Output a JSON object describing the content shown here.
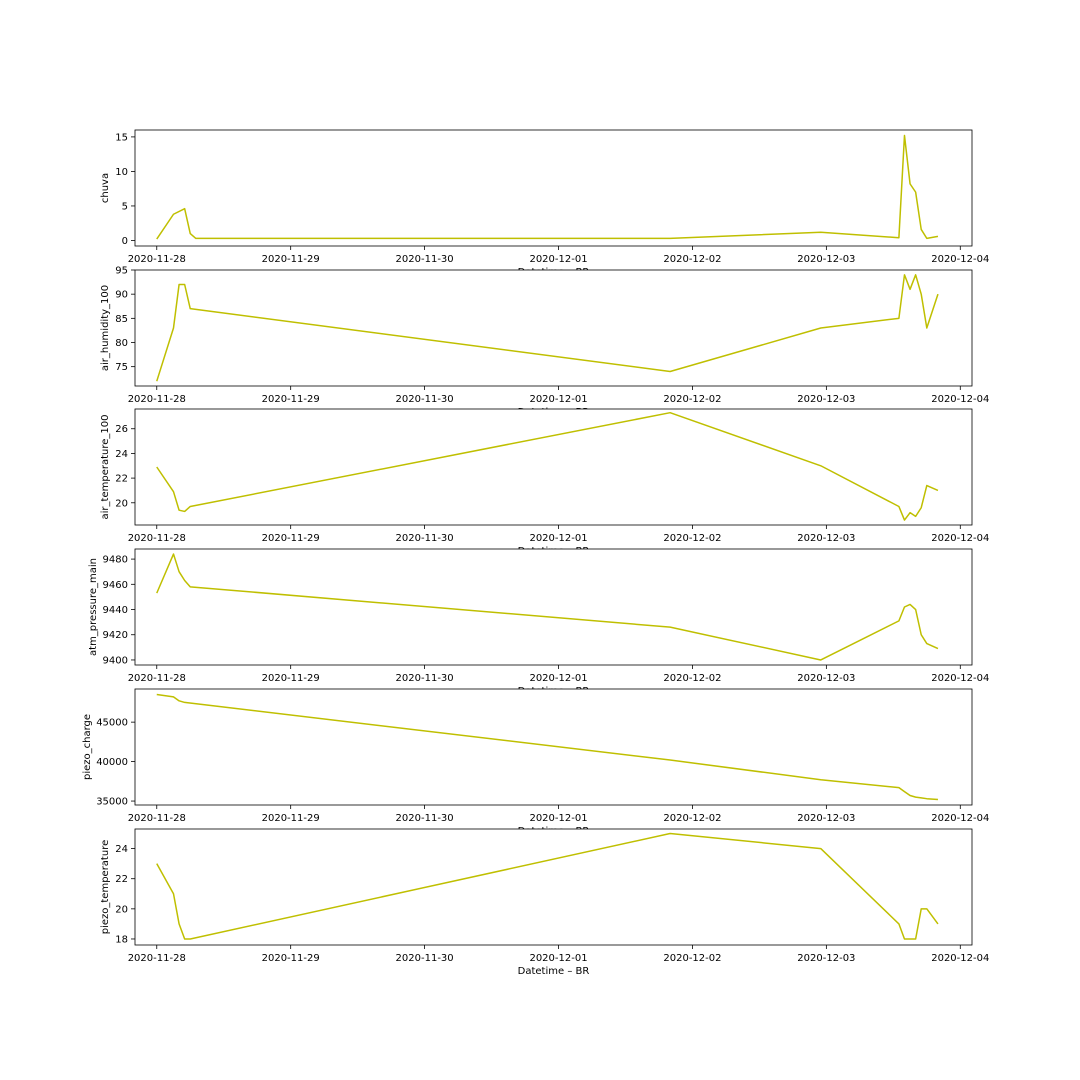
{
  "figure": {
    "background": "#ffffff",
    "line_color": "#bfbf00"
  },
  "chart_data": [
    {
      "type": "line",
      "title": "",
      "xlabel": "Datetime – BR",
      "ylabel": "chuva",
      "x_range": [
        "2020-11-27T20:06",
        "2020-12-04T02:06"
      ],
      "xticks": [
        "2020-11-28",
        "2020-11-29",
        "2020-11-30",
        "2020-12-01",
        "2020-12-02",
        "2020-12-03",
        "2020-12-04"
      ],
      "ylim": [
        -0.8,
        16
      ],
      "yticks": [
        0,
        5,
        10,
        15
      ],
      "grid": false,
      "x": [
        "2020-11-28T00:00",
        "2020-11-28T03:00",
        "2020-11-28T05:00",
        "2020-11-28T06:00",
        "2020-11-28T07:00",
        "2020-11-28T08:00",
        "2020-12-01T20:00",
        "2020-12-02T23:00",
        "2020-12-03T13:00",
        "2020-12-03T14:00",
        "2020-12-03T15:00",
        "2020-12-03T16:00",
        "2020-12-03T17:00",
        "2020-12-03T18:00",
        "2020-12-03T20:00"
      ],
      "series": [
        {
          "values": [
            0.2,
            3.8,
            4.6,
            1.0,
            0.3,
            0.3,
            0.3,
            1.2,
            0.4,
            15.2,
            8.2,
            7.0,
            1.6,
            0.3,
            0.6
          ]
        }
      ]
    },
    {
      "type": "line",
      "title": "",
      "xlabel": "Datetime – BR",
      "ylabel": "air_humidity_100",
      "x_range": [
        "2020-11-27T20:06",
        "2020-12-04T02:06"
      ],
      "xticks": [
        "2020-11-28",
        "2020-11-29",
        "2020-11-30",
        "2020-12-01",
        "2020-12-02",
        "2020-12-03",
        "2020-12-04"
      ],
      "ylim": [
        71,
        95
      ],
      "yticks": [
        75,
        80,
        85,
        90,
        95
      ],
      "grid": false,
      "x": [
        "2020-11-28T00:00",
        "2020-11-28T03:00",
        "2020-11-28T04:00",
        "2020-11-28T05:00",
        "2020-11-28T06:00",
        "2020-12-01T20:00",
        "2020-12-02T23:00",
        "2020-12-03T13:00",
        "2020-12-03T14:00",
        "2020-12-03T15:00",
        "2020-12-03T16:00",
        "2020-12-03T17:00",
        "2020-12-03T18:00",
        "2020-12-03T20:00"
      ],
      "series": [
        {
          "values": [
            72,
            83,
            92,
            92,
            87,
            74,
            83,
            85,
            94,
            91,
            94,
            90,
            83,
            90
          ]
        }
      ]
    },
    {
      "type": "line",
      "title": "",
      "xlabel": "Datetime – BR",
      "ylabel": "air_temperature_100",
      "x_range": [
        "2020-11-27T20:06",
        "2020-12-04T02:06"
      ],
      "xticks": [
        "2020-11-28",
        "2020-11-29",
        "2020-11-30",
        "2020-12-01",
        "2020-12-02",
        "2020-12-03",
        "2020-12-04"
      ],
      "ylim": [
        18.2,
        27.6
      ],
      "yticks": [
        20,
        22,
        24,
        26
      ],
      "grid": false,
      "x": [
        "2020-11-28T00:00",
        "2020-11-28T03:00",
        "2020-11-28T04:00",
        "2020-11-28T05:00",
        "2020-11-28T06:00",
        "2020-12-01T20:00",
        "2020-12-02T23:00",
        "2020-12-03T13:00",
        "2020-12-03T14:00",
        "2020-12-03T15:00",
        "2020-12-03T16:00",
        "2020-12-03T17:00",
        "2020-12-03T18:00",
        "2020-12-03T20:00"
      ],
      "series": [
        {
          "values": [
            22.9,
            20.9,
            19.4,
            19.3,
            19.7,
            27.3,
            23.0,
            19.7,
            18.6,
            19.2,
            18.9,
            19.6,
            21.4,
            21.0
          ]
        }
      ]
    },
    {
      "type": "line",
      "title": "",
      "xlabel": "Datetime – BR",
      "ylabel": "atm_pressure_main",
      "x_range": [
        "2020-11-27T20:06",
        "2020-12-04T02:06"
      ],
      "xticks": [
        "2020-11-28",
        "2020-11-29",
        "2020-11-30",
        "2020-12-01",
        "2020-12-02",
        "2020-12-03",
        "2020-12-04"
      ],
      "ylim": [
        9396,
        9488
      ],
      "yticks": [
        9400,
        9420,
        9440,
        9460,
        9480
      ],
      "grid": false,
      "x": [
        "2020-11-28T00:00",
        "2020-11-28T03:00",
        "2020-11-28T04:00",
        "2020-11-28T05:00",
        "2020-11-28T06:00",
        "2020-12-01T20:00",
        "2020-12-02T23:00",
        "2020-12-03T13:00",
        "2020-12-03T14:00",
        "2020-12-03T15:00",
        "2020-12-03T16:00",
        "2020-12-03T17:00",
        "2020-12-03T18:00",
        "2020-12-03T20:00"
      ],
      "series": [
        {
          "values": [
            9453,
            9484,
            9470,
            9463,
            9458,
            9426,
            9400,
            9431,
            9442,
            9444,
            9440,
            9420,
            9413,
            9409
          ]
        }
      ]
    },
    {
      "type": "line",
      "title": "",
      "xlabel": "Datetime – BR",
      "ylabel": "piezo_charge",
      "x_range": [
        "2020-11-27T20:06",
        "2020-12-04T02:06"
      ],
      "xticks": [
        "2020-11-28",
        "2020-11-29",
        "2020-11-30",
        "2020-12-01",
        "2020-12-02",
        "2020-12-03",
        "2020-12-04"
      ],
      "ylim": [
        34500,
        49200
      ],
      "yticks": [
        35000,
        40000,
        45000
      ],
      "grid": false,
      "x": [
        "2020-11-28T00:00",
        "2020-11-28T03:00",
        "2020-11-28T04:00",
        "2020-11-28T05:00",
        "2020-12-01T20:00",
        "2020-12-02T23:00",
        "2020-12-03T13:00",
        "2020-12-03T14:00",
        "2020-12-03T15:00",
        "2020-12-03T16:00",
        "2020-12-03T17:00",
        "2020-12-03T18:00",
        "2020-12-03T20:00"
      ],
      "series": [
        {
          "values": [
            48500,
            48200,
            47700,
            47500,
            40200,
            37700,
            36700,
            36200,
            35700,
            35500,
            35400,
            35300,
            35200
          ]
        }
      ]
    },
    {
      "type": "line",
      "title": "",
      "xlabel": "Datetime – BR",
      "ylabel": "piezo_temperature",
      "x_range": [
        "2020-11-27T20:06",
        "2020-12-04T02:06"
      ],
      "xticks": [
        "2020-11-28",
        "2020-11-29",
        "2020-11-30",
        "2020-12-01",
        "2020-12-02",
        "2020-12-03",
        "2020-12-04"
      ],
      "ylim": [
        17.6,
        25.3
      ],
      "yticks": [
        18,
        20,
        22,
        24
      ],
      "grid": false,
      "x": [
        "2020-11-28T00:00",
        "2020-11-28T03:00",
        "2020-11-28T04:00",
        "2020-11-28T05:00",
        "2020-11-28T06:00",
        "2020-12-01T20:00",
        "2020-12-02T23:00",
        "2020-12-03T13:00",
        "2020-12-03T14:00",
        "2020-12-03T15:00",
        "2020-12-03T16:00",
        "2020-12-03T17:00",
        "2020-12-03T18:00",
        "2020-12-03T20:00"
      ],
      "series": [
        {
          "values": [
            23,
            21,
            19,
            18,
            18,
            25,
            24,
            19,
            18,
            18,
            18,
            20,
            20,
            19
          ]
        }
      ]
    }
  ]
}
